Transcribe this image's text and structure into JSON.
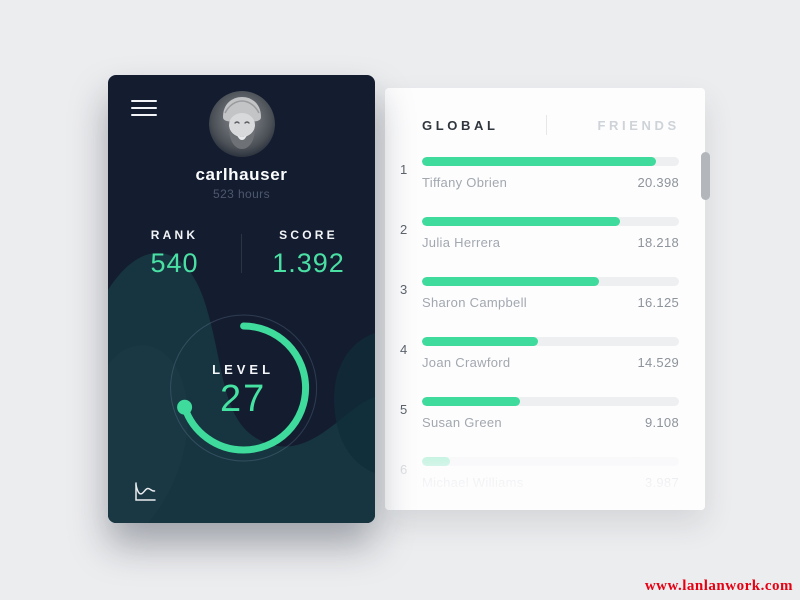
{
  "profile": {
    "username": "carlhauser",
    "hours": "523 hours",
    "rank_label": "RANK",
    "rank_value": "540",
    "score_label": "SCORE",
    "score_value": "1.392",
    "level_label": "LEVEL",
    "level_value": "27",
    "level_progress_pct": 70
  },
  "leaderboard": {
    "tabs": [
      {
        "label": "GLOBAL",
        "active": true
      },
      {
        "label": "FRIENDS",
        "active": false
      }
    ],
    "rows": [
      {
        "rank": "1",
        "name": "Tiffany Obrien",
        "score": "20.398",
        "bar_pct": 91,
        "faded": false
      },
      {
        "rank": "2",
        "name": "Julia Herrera",
        "score": "18.218",
        "bar_pct": 77,
        "faded": false
      },
      {
        "rank": "3",
        "name": "Sharon Campbell",
        "score": "16.125",
        "bar_pct": 69,
        "faded": false
      },
      {
        "rank": "4",
        "name": "Joan Crawford",
        "score": "14.529",
        "bar_pct": 45,
        "faded": false
      },
      {
        "rank": "5",
        "name": "Susan Green",
        "score": "9.108",
        "bar_pct": 38,
        "faded": false
      },
      {
        "rank": "6",
        "name": "Michael Williams",
        "score": "3.987",
        "bar_pct": 11,
        "faded": true
      }
    ]
  },
  "icons": {
    "menu": "hamburger-icon",
    "stats": "line-chart-icon"
  },
  "colors": {
    "accent_green": "#3edb9c",
    "mint_text": "#4ae0a4",
    "panel_navy": "#141d30",
    "panel_teal": "#173540",
    "watermark_red": "#e60012"
  },
  "watermark": "www.lanlanwork.com"
}
